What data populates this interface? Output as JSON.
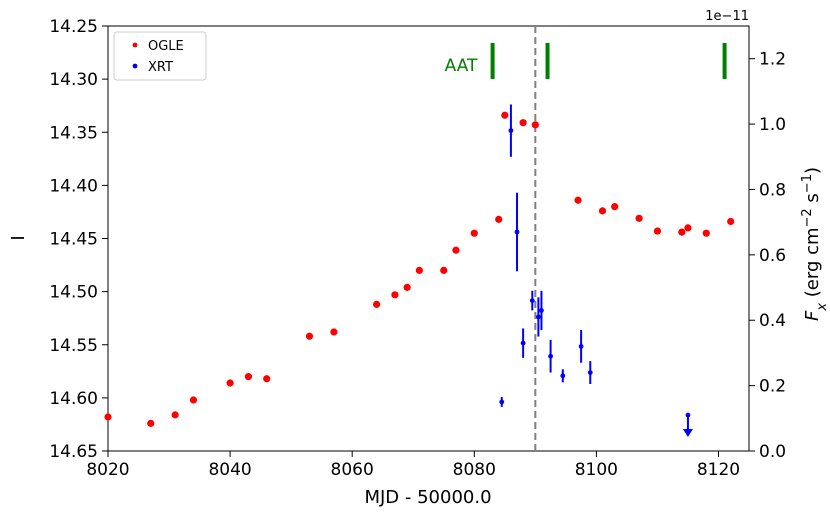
{
  "chart_data": {
    "type": "scatter",
    "xlabel": "MJD - 50000.0",
    "ylabel_left": "I",
    "ylabel_right": "F_x (erg cm^-2 s^-1)",
    "ylabel_right_parts": {
      "main": "F",
      "sub": "x",
      "units_a": " (erg cm",
      "exp_a": "−2",
      "units_b": " s",
      "exp_b": "−1",
      "close": ")"
    },
    "right_axis_offset_label": "1e−11",
    "xlim": [
      8020,
      8125
    ],
    "ylim_left": [
      14.65,
      14.25
    ],
    "ylim_right": [
      0.0,
      1.3
    ],
    "x_ticks": [
      "8020",
      "8040",
      "8060",
      "8080",
      "8100",
      "8120"
    ],
    "y_left_ticks": [
      "14.25",
      "14.30",
      "14.35",
      "14.40",
      "14.45",
      "14.50",
      "14.55",
      "14.60",
      "14.65"
    ],
    "y_right_ticks": [
      "0.0",
      "0.2",
      "0.4",
      "0.6",
      "0.8",
      "1.0",
      "1.2"
    ],
    "legend": {
      "placement": "top-left",
      "entries": [
        "OGLE",
        "XRT"
      ]
    },
    "vline_x": 8090,
    "aat_label": "AAT",
    "aat_epochs": [
      8083,
      8092,
      8121
    ],
    "series": [
      {
        "name": "OGLE",
        "color": "#ff0000",
        "axis": "left",
        "x": [
          8020,
          8027,
          8031,
          8034,
          8040,
          8043,
          8046,
          8053,
          8057,
          8064,
          8067,
          8069,
          8071,
          8075,
          8077,
          8080,
          8084,
          8085,
          8088,
          8090,
          8097,
          8101,
          8103,
          8107,
          8110,
          8114,
          8115,
          8118,
          8122
        ],
        "y": [
          14.618,
          14.624,
          14.616,
          14.602,
          14.586,
          14.58,
          14.582,
          14.542,
          14.538,
          14.512,
          14.503,
          14.496,
          14.48,
          14.48,
          14.461,
          14.445,
          14.432,
          14.334,
          14.341,
          14.343,
          14.414,
          14.424,
          14.42,
          14.431,
          14.443,
          14.444,
          14.44,
          14.445,
          14.434
        ]
      },
      {
        "name": "XRT",
        "color": "#0000ff",
        "axis": "right",
        "x": [
          8084.5,
          8086,
          8087,
          8088,
          8089.5,
          8090.5,
          8091,
          8092.5,
          8094.5,
          8097.5,
          8099
        ],
        "y": [
          0.15,
          0.98,
          0.67,
          0.33,
          0.46,
          0.41,
          0.43,
          0.29,
          0.23,
          0.32,
          0.24
        ],
        "yerr": [
          0.015,
          0.08,
          0.12,
          0.045,
          0.03,
          0.06,
          0.06,
          0.05,
          0.02,
          0.05,
          0.035
        ]
      }
    ],
    "upper_limits": {
      "name": "XRT upper limit",
      "color": "#0000ff",
      "x": [
        8115
      ],
      "y": [
        0.11
      ]
    }
  }
}
